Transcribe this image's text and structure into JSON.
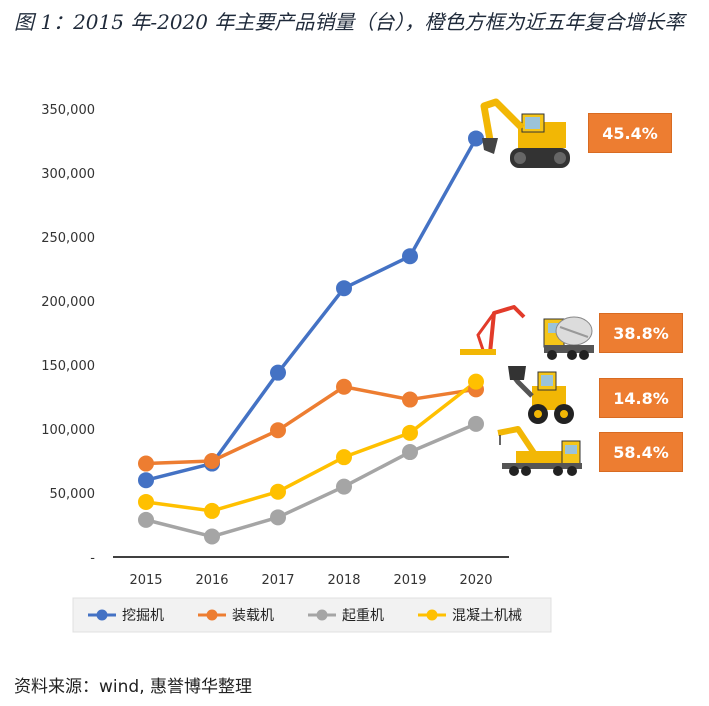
{
  "title": "图 1：2015 年-2020 年主要产品销量（台），橙色方框为近五年复合增长率",
  "source": "资料来源：wind, 惠誉博华整理",
  "chart_data": {
    "type": "line",
    "title": "",
    "xlabel": "",
    "ylabel": "",
    "categories": [
      "2015",
      "2016",
      "2017",
      "2018",
      "2019",
      "2020"
    ],
    "ylim": [
      0,
      350000
    ],
    "yticks": [
      0,
      50000,
      100000,
      150000,
      200000,
      250000,
      300000,
      350000
    ],
    "ytick_labels": [
      "-",
      "50,000",
      "100,000",
      "150,000",
      "200,000",
      "250,000",
      "300,000",
      "350,000"
    ],
    "grid": false,
    "legend_position": "bottom",
    "series": [
      {
        "name": "挖掘机",
        "color": "#4472C4",
        "values": [
          60000,
          73000,
          144000,
          210000,
          235000,
          327000
        ]
      },
      {
        "name": "装载机",
        "color": "#ED7D31",
        "values": [
          73000,
          75000,
          99000,
          133000,
          123000,
          131000
        ]
      },
      {
        "name": "起重机",
        "color": "#A5A5A5",
        "values": [
          29000,
          16000,
          31000,
          55000,
          82000,
          104000
        ]
      },
      {
        "name": "混凝土机械",
        "color": "#FFC000",
        "values": [
          43000,
          36000,
          51000,
          78000,
          97000,
          137000
        ]
      }
    ],
    "cagr_labels": [
      {
        "series": "挖掘机",
        "text": "45.4%",
        "icon": "excavator-icon"
      },
      {
        "series": "混凝土机械",
        "text": "38.8%",
        "icon": "concrete-pump-truck-icon"
      },
      {
        "series": "装载机",
        "text": "14.8%",
        "icon": "wheel-loader-icon"
      },
      {
        "series": "起重机",
        "text": "58.4%",
        "icon": "crane-truck-icon"
      }
    ],
    "cagr_color": "#ED7D31"
  }
}
